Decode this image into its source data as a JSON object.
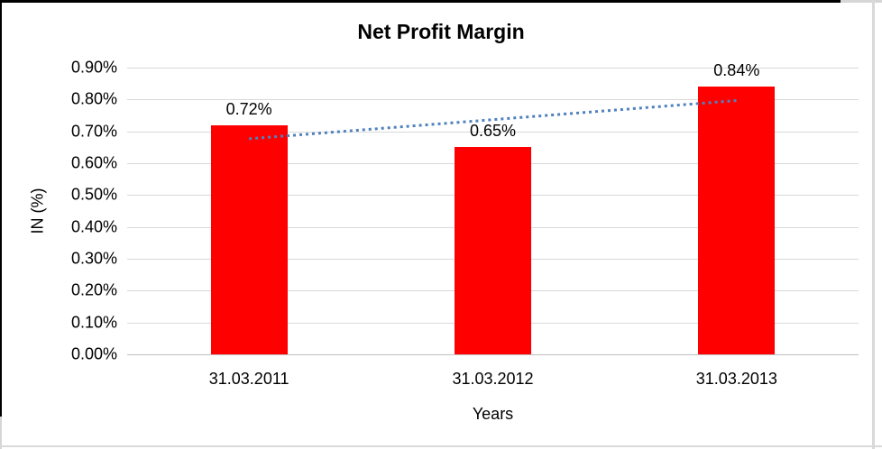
{
  "chart_data": {
    "type": "bar",
    "title": "Net Profit Margin",
    "xlabel": "Years",
    "ylabel": "IN (%)",
    "categories": [
      "31.03.2011",
      "31.03.2012",
      "31.03.2013"
    ],
    "values": [
      0.72,
      0.65,
      0.84
    ],
    "data_labels": [
      "0.72%",
      "0.65%",
      "0.84%"
    ],
    "y_ticks": [
      "0.90%",
      "0.80%",
      "0.70%",
      "0.60%",
      "0.50%",
      "0.40%",
      "0.30%",
      "0.20%",
      "0.10%",
      "0.00%"
    ],
    "ylim": [
      0.0,
      0.9
    ],
    "grid": true,
    "legend": "none",
    "bar_color": "#ff0000",
    "gridline_color": "#d9d9d9",
    "trendline": {
      "type": "linear",
      "style": "dotted",
      "color": "#4f81bd",
      "start_value": 0.6767,
      "end_value": 0.7967
    }
  }
}
